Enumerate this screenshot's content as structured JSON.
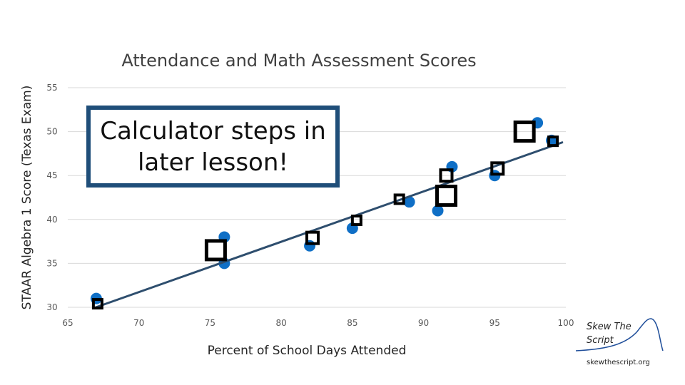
{
  "chart_data": {
    "type": "scatter",
    "title": "Attendance and Math Assessment Scores",
    "xlabel": "Percent of School Days Attended",
    "ylabel": "STAAR Algebra 1 Score (Texas Exam)",
    "xlim": [
      65,
      100
    ],
    "ylim": [
      30,
      55
    ],
    "xticks": [
      "65",
      "70",
      "75",
      "80",
      "85",
      "90",
      "95",
      "100"
    ],
    "yticks": [
      "30",
      "35",
      "40",
      "45",
      "50",
      "55"
    ],
    "grid": "horizontal",
    "points": [
      {
        "x": 67,
        "y": 31
      },
      {
        "x": 76,
        "y": 38
      },
      {
        "x": 76,
        "y": 35
      },
      {
        "x": 82,
        "y": 37
      },
      {
        "x": 85,
        "y": 39
      },
      {
        "x": 89,
        "y": 42
      },
      {
        "x": 91,
        "y": 41
      },
      {
        "x": 92,
        "y": 46
      },
      {
        "x": 95,
        "y": 45
      },
      {
        "x": 98,
        "y": 51
      },
      {
        "x": 99,
        "y": 49
      }
    ],
    "trendline": {
      "x": [
        66.8,
        99.8
      ],
      "y": [
        29.9,
        48.8
      ]
    },
    "residual_boxes": [
      {
        "x": 67.1,
        "y": 30.4,
        "size": "small"
      },
      {
        "x": 75.4,
        "y": 36.5,
        "size": "large"
      },
      {
        "x": 82.2,
        "y": 37.9,
        "size": "medium"
      },
      {
        "x": 85.3,
        "y": 39.9,
        "size": "small"
      },
      {
        "x": 88.3,
        "y": 42.3,
        "size": "small"
      },
      {
        "x": 91.6,
        "y": 45.0,
        "size": "medium"
      },
      {
        "x": 91.6,
        "y": 42.7,
        "size": "large"
      },
      {
        "x": 95.2,
        "y": 45.8,
        "size": "medium"
      },
      {
        "x": 97.1,
        "y": 50.0,
        "size": "large"
      },
      {
        "x": 99.1,
        "y": 48.9,
        "size": "small"
      }
    ],
    "colors": {
      "points": "#0f6fc6",
      "trendline": "#2e4e6e",
      "boxes": "#000000"
    }
  },
  "callout": {
    "line1": "Calculator steps in",
    "line2": "later lesson!",
    "border_color": "#1f4e79"
  },
  "brand": {
    "name": "Skew The Script",
    "site": "skewthescript.org"
  }
}
